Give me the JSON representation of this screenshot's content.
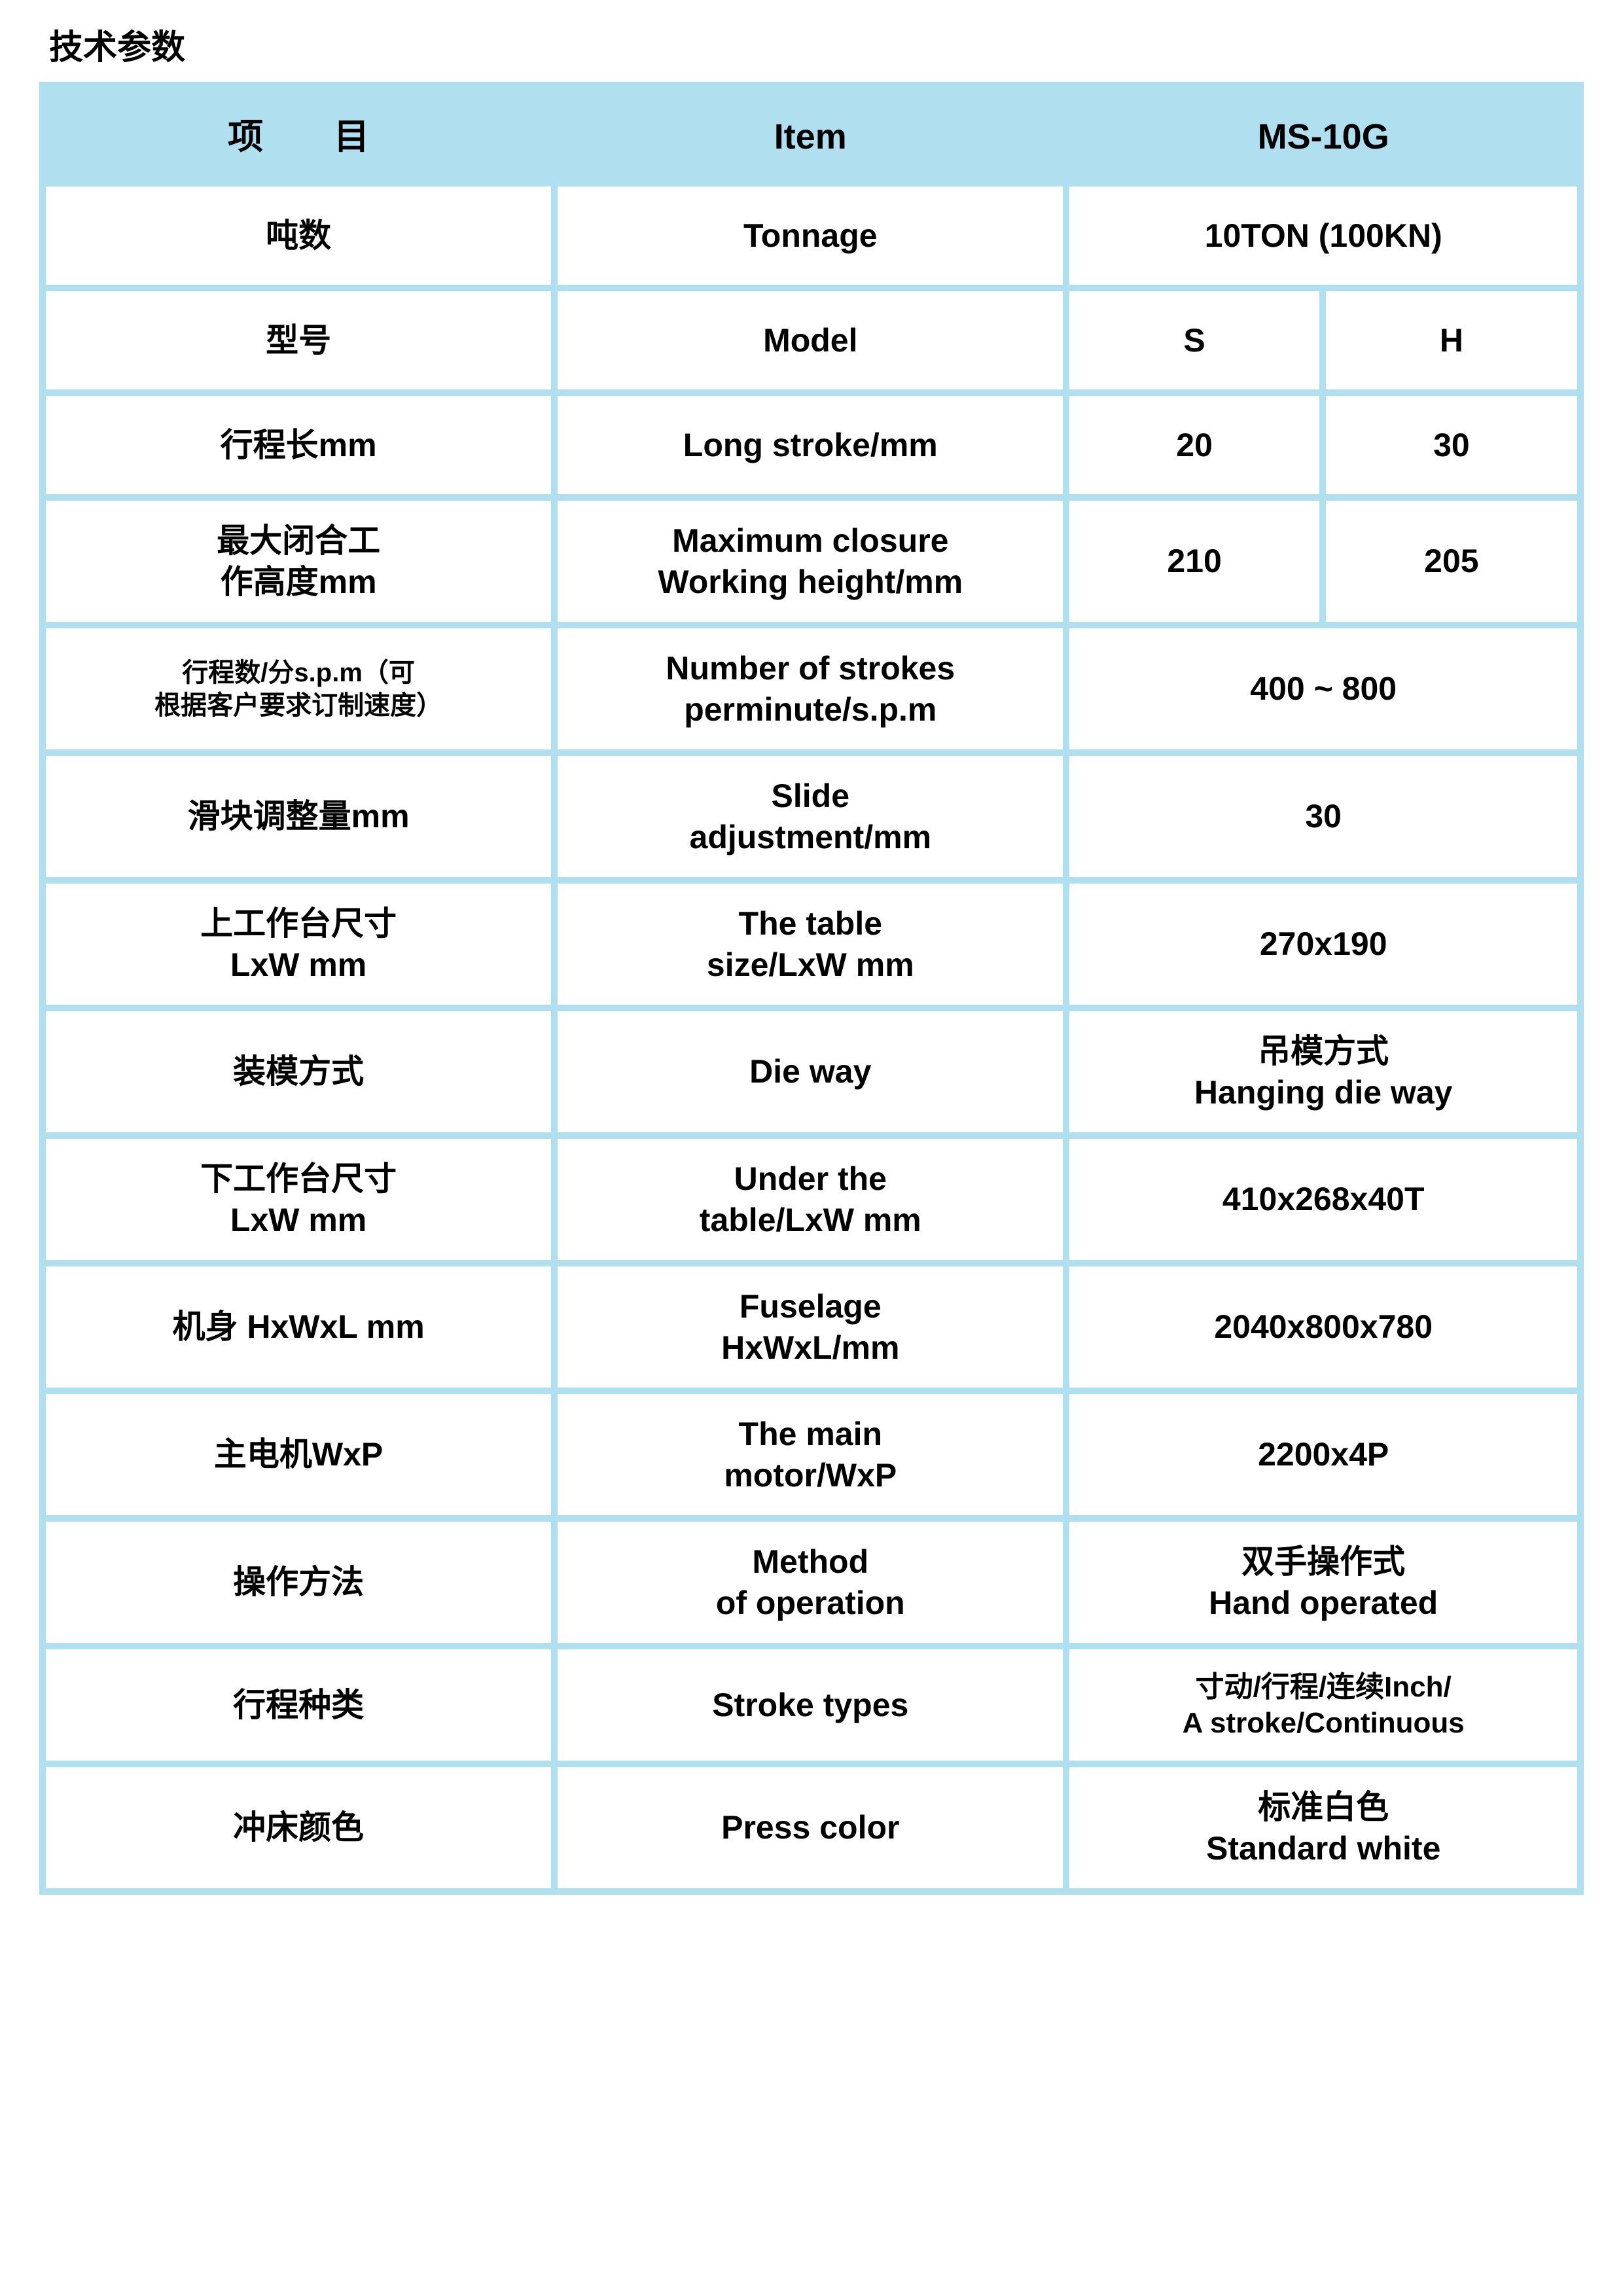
{
  "title": "技术参数",
  "header": {
    "col1": "项　　目",
    "col2": "Item",
    "col3": "MS-10G"
  },
  "rows": [
    {
      "zh": "吨数",
      "en": "Tonnage",
      "val": "10TON (100KN)",
      "split": false
    },
    {
      "zh": "型号",
      "en": "Model",
      "valA": "S",
      "valB": "H",
      "split": true
    },
    {
      "zh": "行程长mm",
      "en": "Long stroke/mm",
      "valA": "20",
      "valB": "30",
      "split": true
    },
    {
      "zh": "最大闭合工\n作高度mm",
      "en": "Maximum closure\nWorking height/mm",
      "valA": "210",
      "valB": "205",
      "split": true
    },
    {
      "zh": "行程数/分s.p.m（可\n根据客户要求订制速度）",
      "zhClass": "xsmall",
      "en": "Number of strokes\nperminute/s.p.m",
      "val": "400 ~ 800",
      "split": false
    },
    {
      "zh": "滑块调整量mm",
      "en": "Slide\nadjustment/mm",
      "val": "30",
      "split": false
    },
    {
      "zh": "上工作台尺寸\nLxW mm",
      "en": "The table\nsize/LxW mm",
      "val": "270x190",
      "split": false
    },
    {
      "zh": "装模方式",
      "en": "Die way",
      "val": "吊模方式\nHanging die way",
      "split": false
    },
    {
      "zh": "下工作台尺寸\nLxW mm",
      "en": "Under the\ntable/LxW mm",
      "val": "410x268x40T",
      "split": false
    },
    {
      "zh": "机身 HxWxL mm",
      "en": "Fuselage\nHxWxL/mm",
      "val": "2040x800x780",
      "split": false
    },
    {
      "zh": "主电机WxP",
      "en": "The main\nmotor/WxP",
      "val": "2200x4P",
      "split": false
    },
    {
      "zh": "操作方法",
      "en": "Method\nof operation",
      "val": "双手操作式\nHand operated",
      "split": false
    },
    {
      "zh": "行程种类",
      "en": "Stroke types",
      "val": "寸动/行程/连续Inch/\nA stroke/Continuous",
      "valClass": "small",
      "split": false
    },
    {
      "zh": "冲床颜色",
      "en": "Press color",
      "val": "标准白色\nStandard white",
      "split": false
    }
  ],
  "colors": {
    "border": "#b0e0f0",
    "cell_bg": "#ffffff",
    "text": "#000000"
  }
}
